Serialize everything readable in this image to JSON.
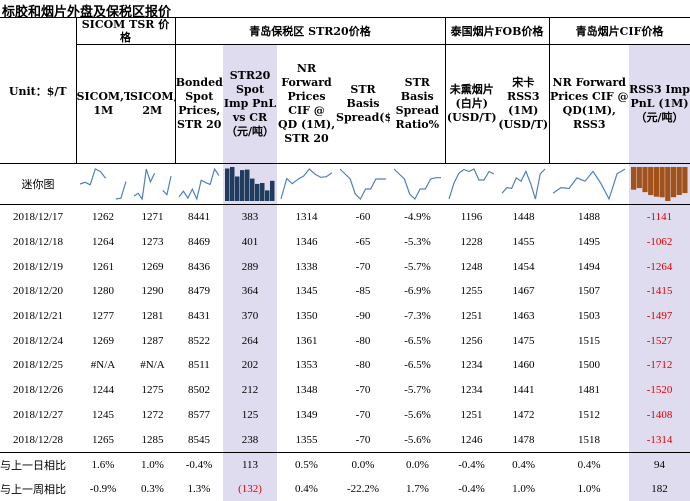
{
  "title": "标胶和烟片外盘及保税区报价",
  "unit_label": "Unit：$/T",
  "groups": {
    "sicom": "SICOM TSR 价格",
    "qingdao": "青岛保税区 STR20价格",
    "thai": "泰国烟片FOB价格",
    "qingdao_cif": "青岛烟片CIF价格"
  },
  "columns": [
    "SICOM,TSR, 1M",
    "SICOM,TSR, 2M",
    "Bonded Spot Prices, STR 20",
    "STR20 Spot Imp PnL vs CR（元/吨）",
    "NR Forward Prices CIF @ QD (1M), STR 20",
    "STR Basis Spread($/T)",
    "STR Basis Spread Ratio%",
    "未熏烟片(白片) (USD/T)",
    "宋卡RSS3 (1M) (USD/T)",
    "NR Forward Prices CIF @ QD(1M), RSS3",
    "RSS3 Imp PnL (1M)（元/吨）"
  ],
  "spark_label": "迷你图",
  "rows": [
    [
      "2018/12/17",
      "1262",
      "1271",
      "8441",
      "383",
      "1314",
      "-60",
      "-4.9%",
      "1196",
      "1448",
      "1488",
      "-1141"
    ],
    [
      "2018/12/18",
      "1264",
      "1273",
      "8469",
      "401",
      "1346",
      "-65",
      "-5.3%",
      "1228",
      "1455",
      "1495",
      "-1062"
    ],
    [
      "2018/12/19",
      "1261",
      "1269",
      "8436",
      "289",
      "1338",
      "-70",
      "-5.7%",
      "1248",
      "1454",
      "1494",
      "-1264"
    ],
    [
      "2018/12/20",
      "1280",
      "1290",
      "8479",
      "364",
      "1345",
      "-85",
      "-6.9%",
      "1255",
      "1467",
      "1507",
      "-1415"
    ],
    [
      "2018/12/21",
      "1277",
      "1281",
      "8431",
      "370",
      "1350",
      "-90",
      "-7.3%",
      "1251",
      "1463",
      "1503",
      "-1497"
    ],
    [
      "2018/12/24",
      "1269",
      "1287",
      "8522",
      "264",
      "1361",
      "-80",
      "-6.5%",
      "1256",
      "1475",
      "1515",
      "-1527"
    ],
    [
      "2018/12/25",
      "#N/A",
      "#N/A",
      "8511",
      "202",
      "1353",
      "-80",
      "-6.5%",
      "1234",
      "1460",
      "1500",
      "-1712"
    ],
    [
      "2018/12/26",
      "1244",
      "1275",
      "8502",
      "212",
      "1348",
      "-70",
      "-5.7%",
      "1234",
      "1441",
      "1481",
      "-1520"
    ],
    [
      "2018/12/27",
      "1245",
      "1272",
      "8577",
      "125",
      "1349",
      "-70",
      "-5.6%",
      "1251",
      "1472",
      "1512",
      "-1408"
    ],
    [
      "2018/12/28",
      "1265",
      "1285",
      "8545",
      "238",
      "1355",
      "-70",
      "-5.6%",
      "1246",
      "1478",
      "1518",
      "-1314"
    ]
  ],
  "summary": [
    [
      "与上一日相比",
      "1.6%",
      "1.0%",
      "-0.4%",
      "113",
      "0.5%",
      "0.0%",
      "0.0%",
      "-0.4%",
      "0.4%",
      "0.4%",
      "94"
    ],
    [
      "与上一周相比",
      "-0.9%",
      "0.3%",
      "1.3%",
      "(132)",
      "0.4%",
      "-22.2%",
      "1.7%",
      "-0.4%",
      "1.0%",
      "1.0%",
      "182"
    ]
  ],
  "colors": {
    "highlight_bg": "#e0dcef",
    "negative": "#e00000",
    "spark_line": "#4f81bd",
    "bar_navy": "#1f3b5e",
    "bar_brown": "#a0521a"
  }
}
